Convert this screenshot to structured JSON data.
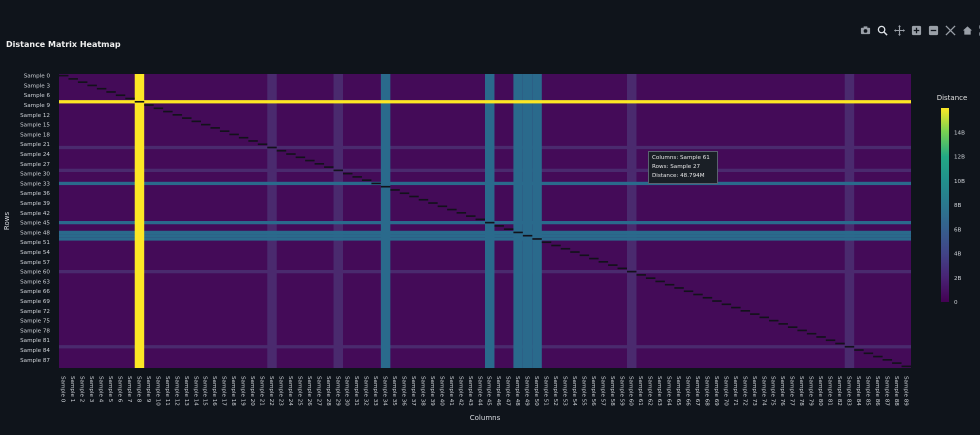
{
  "title": "Distance Matrix Heatmap",
  "modebar": [
    {
      "name": "camera-icon"
    },
    {
      "name": "zoom-icon"
    },
    {
      "name": "pan-icon"
    },
    {
      "name": "zoom-in-icon"
    },
    {
      "name": "zoom-out-icon"
    },
    {
      "name": "autoscale-icon"
    },
    {
      "name": "home-icon"
    },
    {
      "name": "fullscreen-icon"
    }
  ],
  "tooltip": {
    "columns": "Columns: Sample 61",
    "rows": "Rows: Sample 27",
    "distance": "Distance: 48.794M"
  },
  "colors": {
    "background": "#0f141b",
    "base": "#440b58",
    "band_light": "#4a2a6e",
    "teal": "#2a6a8c",
    "yellow": "#fde725",
    "diag": "#12121a"
  },
  "chart_data": {
    "type": "heatmap",
    "xlabel": "Columns",
    "ylabel": "Rows",
    "colorbar_title": "Distance",
    "zmin": 0,
    "zmax": 16000000000,
    "colorbar_ticks": [
      {
        "value": 0,
        "label": "0"
      },
      {
        "value": 2000000000,
        "label": "2B"
      },
      {
        "value": 4000000000,
        "label": "4B"
      },
      {
        "value": 6000000000,
        "label": "6B"
      },
      {
        "value": 8000000000,
        "label": "8B"
      },
      {
        "value": 10000000000,
        "label": "10B"
      },
      {
        "value": 12000000000,
        "label": "12B"
      },
      {
        "value": 14000000000,
        "label": "14B"
      }
    ],
    "n_samples": 90,
    "y_tick_labels": [
      "Sample 0",
      "Sample 3",
      "Sample 6",
      "Sample 9",
      "Sample 12",
      "Sample 15",
      "Sample 18",
      "Sample 21",
      "Sample 24",
      "Sample 27",
      "Sample 30",
      "Sample 33",
      "Sample 36",
      "Sample 39",
      "Sample 42",
      "Sample 45",
      "Sample 48",
      "Sample 51",
      "Sample 54",
      "Sample 57",
      "Sample 60",
      "Sample 63",
      "Sample 66",
      "Sample 69",
      "Sample 72",
      "Sample 75",
      "Sample 78",
      "Sample 81",
      "Sample 84",
      "Sample 87"
    ],
    "x_tick_labels": [
      "Sample 0",
      "Sample 1",
      "Sample 2",
      "Sample 3",
      "Sample 4",
      "Sample 5",
      "Sample 6",
      "Sample 7",
      "Sample 8",
      "Sample 9",
      "Sample 10",
      "Sample 11",
      "Sample 12",
      "Sample 13",
      "Sample 14",
      "Sample 15",
      "Sample 16",
      "Sample 17",
      "Sample 18",
      "Sample 19",
      "Sample 20",
      "Sample 21",
      "Sample 22",
      "Sample 23",
      "Sample 24",
      "Sample 25",
      "Sample 26",
      "Sample 27",
      "Sample 28",
      "Sample 29",
      "Sample 30",
      "Sample 31",
      "Sample 32",
      "Sample 33",
      "Sample 34",
      "Sample 35",
      "Sample 36",
      "Sample 37",
      "Sample 38",
      "Sample 39",
      "Sample 40",
      "Sample 41",
      "Sample 42",
      "Sample 43",
      "Sample 44",
      "Sample 45",
      "Sample 46",
      "Sample 47",
      "Sample 48",
      "Sample 49",
      "Sample 50",
      "Sample 51",
      "Sample 52",
      "Sample 53",
      "Sample 54",
      "Sample 55",
      "Sample 56",
      "Sample 57",
      "Sample 58",
      "Sample 59",
      "Sample 60",
      "Sample 61",
      "Sample 62",
      "Sample 63",
      "Sample 64",
      "Sample 65",
      "Sample 66",
      "Sample 67",
      "Sample 68",
      "Sample 69",
      "Sample 70",
      "Sample 71",
      "Sample 72",
      "Sample 73",
      "Sample 74",
      "Sample 75",
      "Sample 76",
      "Sample 77",
      "Sample 78",
      "Sample 79",
      "Sample 80",
      "Sample 81",
      "Sample 82",
      "Sample 83",
      "Sample 84",
      "Sample 85",
      "Sample 86",
      "Sample 87",
      "Sample 88",
      "Sample 89"
    ],
    "high_samples": [
      {
        "sample": 8,
        "level": "yellow"
      },
      {
        "sample": 34,
        "level": "teal"
      },
      {
        "sample": 45,
        "level": "teal"
      },
      {
        "sample": 48,
        "level": "teal"
      },
      {
        "sample": 49,
        "level": "teal"
      },
      {
        "sample": 50,
        "level": "teal"
      }
    ],
    "light_samples": [
      22,
      29,
      60,
      83
    ],
    "row_offsets": {
      "34": -1
    }
  }
}
